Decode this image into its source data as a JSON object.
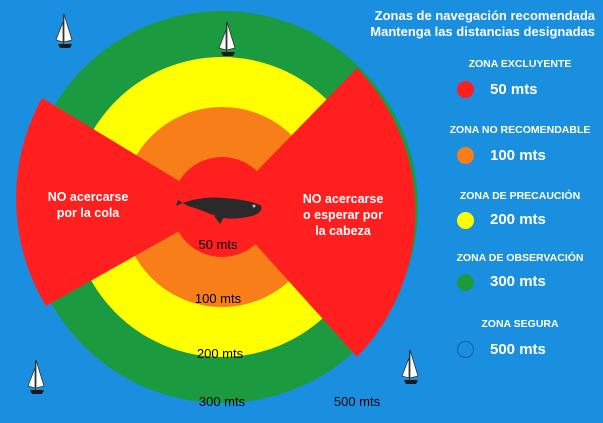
{
  "title": {
    "line1": "Zonas de navegación recomendada",
    "line2": "Mantenga las distancias designadas"
  },
  "rings": [
    {
      "label": "50 mts",
      "color": "#ff1f1f"
    },
    {
      "label": "100 mts",
      "color": "#f77e19"
    },
    {
      "label": "200 mts",
      "color": "#ffff00"
    },
    {
      "label": "300 mts",
      "color": "#1c9a3f"
    },
    {
      "label": "500 mts",
      "color": "#1a8fe0"
    }
  ],
  "exclusion_zones": {
    "tail_text": [
      "NO acercarse",
      "por la cola"
    ],
    "head_text": [
      "NO acercarse",
      "o esperar por",
      "la cabeza"
    ]
  },
  "legend": [
    {
      "label": "ZONA EXCLUYENTE",
      "value": "50 mts",
      "color": "#ff1f1f"
    },
    {
      "label": "ZONA NO RECOMENDABLE",
      "value": "100 mts",
      "color": "#f77e19"
    },
    {
      "label": "ZONA DE PRECAUCIÓN",
      "value": "200 mts",
      "color": "#ffff00"
    },
    {
      "label": "ZONA DE OBSERVACIÓN",
      "value": "300 mts",
      "color": "#1c9a3f"
    },
    {
      "label": "ZONA SEGURA",
      "value": "500 mts",
      "color": "#1a8fe0"
    }
  ],
  "icons": {
    "whale": "whale-icon",
    "boat": "sailboat-icon"
  }
}
